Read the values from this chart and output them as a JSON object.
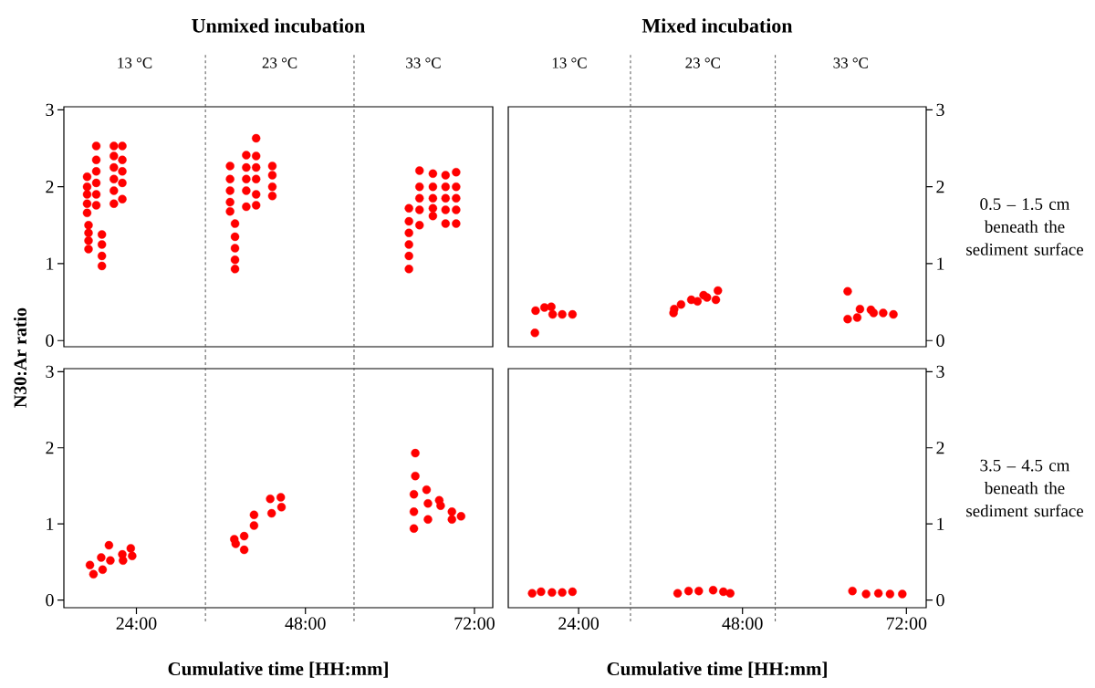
{
  "chart_data": [
    {
      "type": "scatter",
      "title": "Unmixed incubation",
      "ylabel": "N30:Ar ratio",
      "color": "#ff0000",
      "tick_labels": "y",
      "x": [
        17.0,
        17.0,
        17.0,
        17.0,
        17.0,
        17.2,
        17.2,
        17.2,
        17.2,
        18.3,
        18.3,
        18.3,
        18.3,
        18.3,
        18.3,
        19.1,
        19.1,
        19.1,
        19.1,
        20.8,
        20.8,
        20.8,
        20.8,
        20.8,
        20.8,
        22.0,
        22.0,
        22.0,
        22.0,
        22.0,
        37.3,
        37.3,
        37.3,
        37.3,
        37.3,
        38.0,
        38.0,
        38.0,
        38.0,
        38.0,
        39.6,
        39.6,
        39.6,
        39.6,
        39.6,
        41.0,
        41.0,
        41.0,
        41.0,
        41.0,
        41.0,
        43.3,
        43.3,
        43.3,
        43.3,
        62.7,
        62.7,
        62.7,
        62.7,
        62.7,
        62.7,
        64.2,
        64.2,
        64.2,
        64.2,
        64.2,
        66.1,
        66.1,
        66.1,
        66.1,
        66.1,
        67.9,
        67.9,
        67.9,
        67.9,
        67.9,
        69.4,
        69.4,
        69.4,
        69.4,
        69.4
      ],
      "values": [
        2.13,
        2.0,
        1.9,
        1.78,
        1.66,
        1.5,
        1.4,
        1.3,
        1.19,
        2.53,
        2.35,
        2.2,
        2.05,
        1.9,
        1.76,
        1.38,
        1.25,
        1.1,
        0.97,
        2.53,
        2.4,
        2.25,
        2.1,
        1.95,
        1.78,
        2.53,
        2.35,
        2.2,
        2.05,
        1.84,
        2.27,
        2.1,
        1.95,
        1.8,
        1.68,
        1.52,
        1.35,
        1.2,
        1.05,
        0.93,
        2.41,
        2.25,
        2.1,
        1.95,
        1.74,
        2.63,
        2.4,
        2.25,
        2.1,
        1.9,
        1.76,
        2.27,
        2.15,
        2.0,
        1.88,
        1.72,
        1.55,
        1.4,
        1.25,
        1.1,
        0.93,
        2.21,
        2.0,
        1.85,
        1.7,
        1.5,
        2.17,
        2.0,
        1.85,
        1.72,
        1.62,
        2.15,
        2.0,
        1.85,
        1.7,
        1.52,
        2.19,
        2.0,
        1.85,
        1.7,
        1.52
      ],
      "xlim": [
        13.7,
        74.6
      ],
      "ylim": [
        -0.08,
        3.04
      ],
      "yticks": [
        0,
        1,
        2,
        3
      ],
      "ref_lines": [
        {
          "axis": "x",
          "value": 33.8,
          "line_style": "dashed",
          "color": "#555555"
        },
        {
          "axis": "x",
          "value": 54.9,
          "line_style": "dashed",
          "color": "#555555"
        }
      ],
      "annotations": [
        "13 °C",
        "23 °C",
        "33 °C"
      ]
    },
    {
      "type": "scatter",
      "title": "Mixed incubation",
      "color": "#ff0000",
      "tick_labels": "y",
      "x": [
        17.6,
        17.7,
        19.0,
        20.0,
        20.2,
        21.6,
        23.1,
        37.9,
        38.0,
        39.0,
        40.5,
        41.4,
        42.3,
        42.8,
        44.1,
        44.4,
        63.4,
        63.4,
        64.8,
        65.2,
        66.8,
        67.2,
        68.6,
        70.1
      ],
      "values": [
        0.1,
        0.39,
        0.43,
        0.44,
        0.34,
        0.34,
        0.34,
        0.36,
        0.41,
        0.47,
        0.53,
        0.51,
        0.59,
        0.56,
        0.53,
        0.65,
        0.64,
        0.28,
        0.3,
        0.41,
        0.4,
        0.36,
        0.36,
        0.34
      ],
      "xlim": [
        13.7,
        74.9
      ],
      "ylim": [
        -0.08,
        3.04
      ],
      "yticks": [
        0,
        1,
        2,
        3
      ],
      "ref_lines": [
        {
          "axis": "x",
          "value": 31.6,
          "line_style": "dashed",
          "color": "#555555"
        },
        {
          "axis": "x",
          "value": 52.8,
          "line_style": "dashed",
          "color": "#555555"
        }
      ],
      "annotations": [
        "13 °C",
        "23 °C",
        "33 °C",
        "0.5 – 1.5 cm beneath the sediment surface"
      ]
    },
    {
      "type": "scatter",
      "xlabel": "Cumulative time [HH:mm]",
      "color": "#ff0000",
      "x": [
        17.4,
        17.9,
        19.0,
        19.2,
        20.1,
        20.3,
        22.0,
        22.1,
        23.2,
        23.4,
        37.9,
        38.1,
        39.3,
        39.3,
        40.7,
        40.7,
        43.0,
        43.2,
        44.5,
        44.6,
        63.6,
        63.6,
        63.4,
        63.4,
        63.4,
        65.2,
        65.4,
        65.4,
        67.0,
        67.2,
        68.8,
        68.8,
        70.1
      ],
      "values": [
        0.46,
        0.34,
        0.56,
        0.4,
        0.72,
        0.52,
        0.6,
        0.52,
        0.68,
        0.58,
        0.8,
        0.74,
        0.84,
        0.66,
        1.12,
        0.98,
        1.33,
        1.14,
        1.35,
        1.22,
        1.93,
        1.63,
        1.39,
        1.16,
        0.94,
        1.45,
        1.27,
        1.06,
        1.31,
        1.24,
        1.16,
        1.06,
        1.1
      ],
      "xlim": [
        13.7,
        74.6
      ],
      "ylim": [
        -0.1,
        3.04
      ],
      "yticks": [
        0,
        1,
        2,
        3
      ],
      "xticks": [
        {
          "value": 24,
          "label": "24:00"
        },
        {
          "value": 48,
          "label": "48:00"
        },
        {
          "value": 72,
          "label": "72:00"
        }
      ],
      "ref_lines": [
        {
          "axis": "x",
          "value": 33.8,
          "line_style": "dashed",
          "color": "#555555"
        },
        {
          "axis": "x",
          "value": 54.9,
          "line_style": "dashed",
          "color": "#555555"
        }
      ]
    },
    {
      "type": "scatter",
      "xlabel": "Cumulative time [HH:mm]",
      "color": "#ff0000",
      "x": [
        17.2,
        18.5,
        20.1,
        21.6,
        23.1,
        38.5,
        40.1,
        41.6,
        43.7,
        45.2,
        46.2,
        64.1,
        66.1,
        67.9,
        69.6,
        71.4
      ],
      "values": [
        0.09,
        0.11,
        0.1,
        0.1,
        0.11,
        0.09,
        0.12,
        0.12,
        0.13,
        0.11,
        0.09,
        0.12,
        0.08,
        0.09,
        0.08,
        0.08
      ],
      "xlim": [
        13.7,
        74.9
      ],
      "ylim": [
        -0.1,
        3.04
      ],
      "yticks": [
        0,
        1,
        2,
        3
      ],
      "xticks": [
        {
          "value": 24,
          "label": "24:00"
        },
        {
          "value": 48,
          "label": "48:00"
        },
        {
          "value": 72,
          "label": "72:00"
        }
      ],
      "ref_lines": [
        {
          "axis": "x",
          "value": 31.6,
          "line_style": "dashed",
          "color": "#555555"
        },
        {
          "axis": "x",
          "value": 52.8,
          "line_style": "dashed",
          "color": "#555555"
        }
      ],
      "annotations": [
        "3.5 – 4.5 cm beneath the sediment surface"
      ]
    }
  ]
}
